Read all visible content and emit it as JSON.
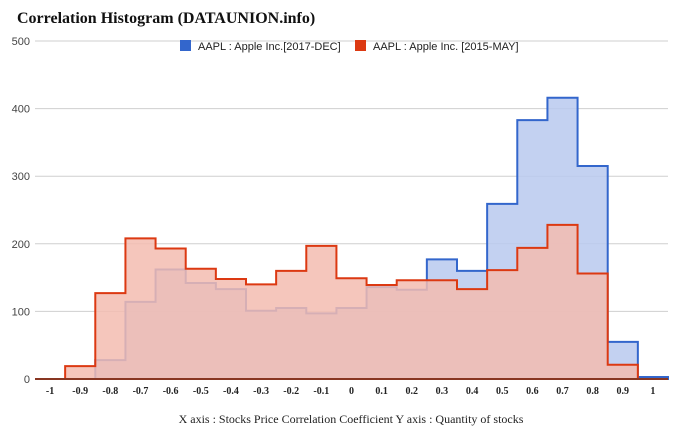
{
  "chart_data": {
    "type": "area",
    "title": "Correlation Histogram (DATAUNION.info)",
    "caption": "X axis : Stocks Price Correlation Coefficient  Y axis : Quantity of stocks",
    "x_bin_edges": [
      -1.05,
      -0.95,
      -0.85,
      -0.75,
      -0.65,
      -0.55,
      -0.45,
      -0.35,
      -0.25,
      -0.15,
      -0.05,
      0.05,
      0.15,
      0.25,
      0.35,
      0.45,
      0.55,
      0.65,
      0.75,
      0.85,
      0.95,
      1.05
    ],
    "x_tick_labels": [
      "-1",
      "-0.9",
      "-0.8",
      "-0.7",
      "-0.6",
      "-0.5",
      "-0.4",
      "-0.3",
      "-0.2",
      "-0.1",
      "0",
      "0.1",
      "0.2",
      "0.3",
      "0.4",
      "0.5",
      "0.6",
      "0.7",
      "0.8",
      "0.9",
      "1"
    ],
    "x_tick_values": [
      -1,
      -0.9,
      -0.8,
      -0.7,
      -0.6,
      -0.5,
      -0.4,
      -0.3,
      -0.2,
      -0.1,
      0,
      0.1,
      0.2,
      0.3,
      0.4,
      0.5,
      0.6,
      0.7,
      0.8,
      0.9,
      1
    ],
    "y_ticks": [
      0,
      100,
      200,
      300,
      400,
      500
    ],
    "ylim": [
      0,
      500
    ],
    "grid": true,
    "legend_position": "top-center",
    "series": [
      {
        "name": "AAPL : Apple Inc.[2017-DEC]",
        "color": "#3366cc",
        "fill": "#b9c9ef",
        "values": [
          0,
          0,
          28,
          114,
          162,
          142,
          133,
          101,
          105,
          97,
          105,
          136,
          132,
          177,
          160,
          259,
          383,
          416,
          315,
          55,
          3
        ]
      },
      {
        "name": "AAPL : Apple Inc. [2015-MAY]",
        "color": "#dc3912",
        "fill": "#f3bcb0",
        "values": [
          0,
          19,
          127,
          208,
          193,
          163,
          148,
          140,
          160,
          197,
          149,
          139,
          146,
          146,
          133,
          161,
          194,
          228,
          156,
          21,
          0
        ]
      }
    ]
  }
}
